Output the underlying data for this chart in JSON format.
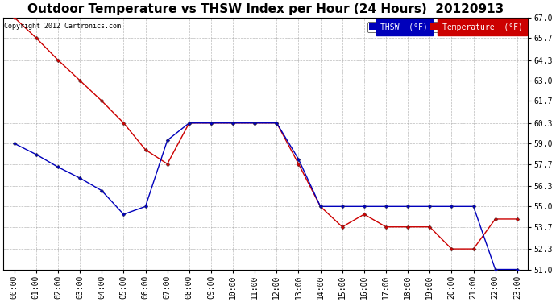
{
  "title": "Outdoor Temperature vs THSW Index per Hour (24 Hours)  20120913",
  "copyright": "Copyright 2012 Cartronics.com",
  "hours": [
    "00:00",
    "01:00",
    "02:00",
    "03:00",
    "04:00",
    "05:00",
    "06:00",
    "07:00",
    "08:00",
    "09:00",
    "10:00",
    "11:00",
    "12:00",
    "13:00",
    "14:00",
    "15:00",
    "16:00",
    "17:00",
    "18:00",
    "19:00",
    "20:00",
    "21:00",
    "22:00",
    "23:00"
  ],
  "thsw": [
    59.0,
    58.3,
    57.5,
    56.8,
    56.0,
    54.5,
    55.0,
    59.2,
    60.3,
    60.3,
    60.3,
    60.3,
    60.3,
    58.0,
    55.0,
    55.0,
    55.0,
    55.0,
    55.0,
    55.0,
    55.0,
    55.0,
    51.0,
    51.0
  ],
  "temperature": [
    67.0,
    65.7,
    64.3,
    63.0,
    61.7,
    60.3,
    58.6,
    57.7,
    60.3,
    60.3,
    60.3,
    60.3,
    60.3,
    57.7,
    55.0,
    53.7,
    54.5,
    53.7,
    53.7,
    53.7,
    52.3,
    52.3,
    54.2,
    54.2
  ],
  "thsw_color": "#0000bb",
  "temp_color": "#cc0000",
  "background_color": "#ffffff",
  "grid_color": "#aaaaaa",
  "ylim_min": 51.0,
  "ylim_max": 67.0,
  "yticks": [
    51.0,
    52.3,
    53.7,
    55.0,
    56.3,
    57.7,
    59.0,
    60.3,
    61.7,
    63.0,
    64.3,
    65.7,
    67.0
  ],
  "title_fontsize": 11,
  "tick_fontsize": 7,
  "copyright_fontsize": 6,
  "legend_thsw_label": "THSW  (°F)",
  "legend_temp_label": "Temperature  (°F)"
}
